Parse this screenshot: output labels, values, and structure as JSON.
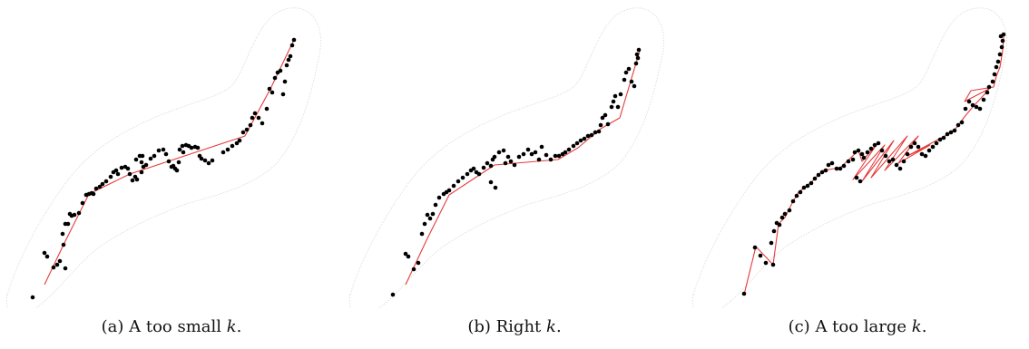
{
  "figure": {
    "panels": [
      {
        "label": "(a)",
        "text": "A too small ",
        "k": "k",
        "suffix": "."
      },
      {
        "label": "(b)",
        "text": "Right ",
        "k": "k",
        "suffix": "."
      },
      {
        "label": "(c)",
        "text": "A too large ",
        "k": "k",
        "suffix": "."
      }
    ]
  },
  "colors": {
    "curve": "#e53b3b",
    "points": "#000000",
    "envelope": "#d8d8d8"
  },
  "chart_data": [
    {
      "type": "scatter",
      "panel": "a",
      "title": "",
      "xlabel": "",
      "ylabel": ""
    },
    {
      "type": "scatter",
      "panel": "b",
      "title": "",
      "xlabel": "",
      "ylabel": ""
    },
    {
      "type": "scatter",
      "panel": "c",
      "title": "",
      "xlabel": "",
      "ylabel": ""
    }
  ]
}
